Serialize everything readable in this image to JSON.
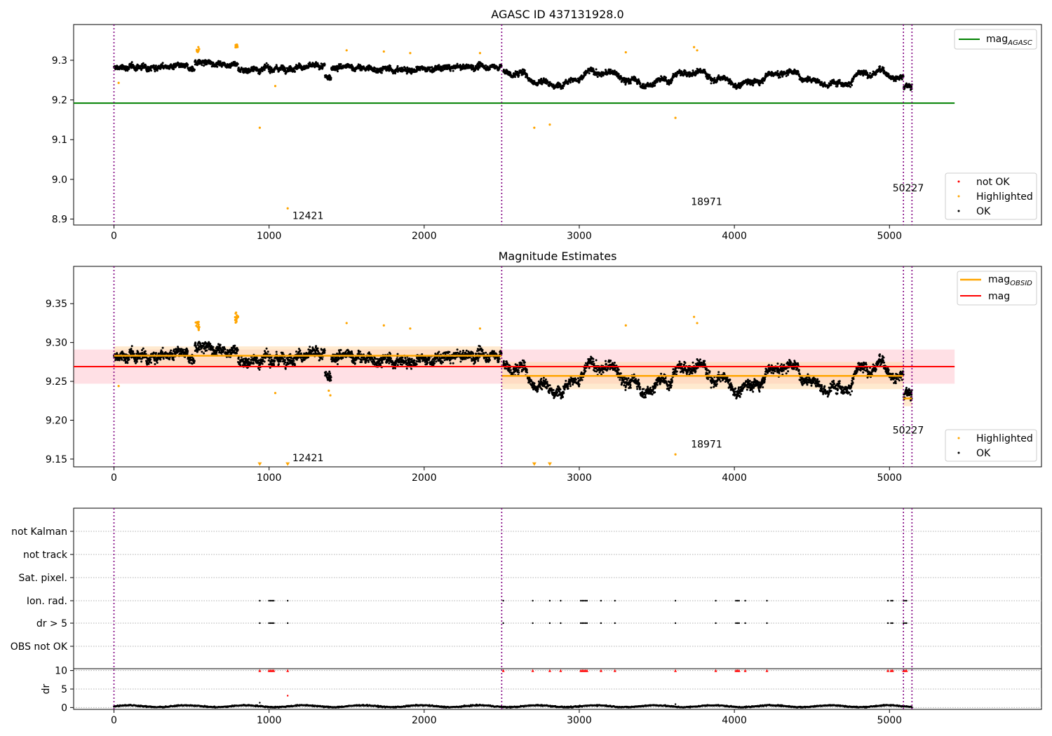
{
  "chart_data": [
    {
      "type": "scatter",
      "title": "AGASC ID 437131928.0",
      "xlim": [
        -260,
        5980
      ],
      "ylim": [
        8.885,
        9.39
      ],
      "xticks": [
        0,
        1000,
        2000,
        3000,
        4000,
        5000
      ],
      "yticks": [
        8.9,
        9.0,
        9.1,
        9.2,
        9.3
      ],
      "ytick_labels": [
        "8.9",
        "9.0",
        "9.1",
        "9.2",
        "9.3"
      ],
      "obs_boundaries": [
        0,
        2500,
        5090,
        5145
      ],
      "annotations": [
        {
          "text": "12421",
          "x": 1150,
          "y": 8.9
        },
        {
          "text": "18971",
          "x": 3720,
          "y": 8.935
        },
        {
          "text": "50227",
          "x": 5020,
          "y": 8.97
        }
      ],
      "hlines": [
        {
          "name": "mag_AGASC",
          "y": 9.192,
          "color": "#008000",
          "x_range": [
            0,
            5420
          ]
        }
      ],
      "highlighted_points": [
        {
          "x": 30,
          "y": 9.243
        },
        {
          "x": 940,
          "y": 9.13
        },
        {
          "x": 1040,
          "y": 9.235
        },
        {
          "x": 1120,
          "y": 8.927
        },
        {
          "x": 1500,
          "y": 9.325
        },
        {
          "x": 1740,
          "y": 9.322
        },
        {
          "x": 1910,
          "y": 9.318
        },
        {
          "x": 2360,
          "y": 9.318
        },
        {
          "x": 2710,
          "y": 9.13
        },
        {
          "x": 2810,
          "y": 9.138
        },
        {
          "x": 3300,
          "y": 9.32
        },
        {
          "x": 3620,
          "y": 9.155
        },
        {
          "x": 3740,
          "y": 9.333
        },
        {
          "x": 3760,
          "y": 9.325
        }
      ],
      "legend": {
        "lines": [
          "mag_AGASC"
        ],
        "points": [
          "not OK",
          "Highlighted",
          "OK"
        ],
        "line_placement": "upper-right",
        "points_placement": "lower-right"
      },
      "series_colors": {
        "ok": "#000000",
        "highlighted": "#ffa500",
        "not_ok": "#ff0000",
        "boundary": "#800080"
      }
    },
    {
      "type": "scatter",
      "title": "Magnitude Estimates",
      "xlim": [
        -260,
        5980
      ],
      "ylim": [
        9.14,
        9.398
      ],
      "xticks": [
        0,
        1000,
        2000,
        3000,
        4000,
        5000
      ],
      "yticks": [
        9.15,
        9.2,
        9.25,
        9.3,
        9.35
      ],
      "ytick_labels": [
        "9.15",
        "9.20",
        "9.25",
        "9.30",
        "9.35"
      ],
      "obs_boundaries": [
        0,
        2500,
        5090,
        5145
      ],
      "annotations": [
        {
          "text": "12421",
          "x": 1150,
          "y": 9.147
        },
        {
          "text": "18971",
          "x": 3720,
          "y": 9.165
        },
        {
          "text": "50227",
          "x": 5020,
          "y": 9.183
        }
      ],
      "mag": {
        "y": 9.269,
        "band": [
          9.247,
          9.291
        ],
        "x_range": [
          -260,
          5420
        ],
        "color": "#ff0000"
      },
      "mag_obsid": [
        {
          "x_range": [
            0,
            2500
          ],
          "y": 9.283,
          "band": [
            9.27,
            9.295
          ]
        },
        {
          "x_range": [
            2500,
            5090
          ],
          "y": 9.257,
          "band": [
            9.24,
            9.275
          ]
        },
        {
          "x_range": [
            5090,
            5145
          ],
          "y": 9.228,
          "band": [
            9.218,
            9.238
          ]
        }
      ],
      "highlighted_points": [
        {
          "x": 30,
          "y": 9.244
        },
        {
          "x": 940,
          "y": 9.143
        },
        {
          "x": 1040,
          "y": 9.235
        },
        {
          "x": 1120,
          "y": 9.143
        },
        {
          "x": 1385,
          "y": 9.238
        },
        {
          "x": 1395,
          "y": 9.232
        },
        {
          "x": 1500,
          "y": 9.325
        },
        {
          "x": 1740,
          "y": 9.322
        },
        {
          "x": 1910,
          "y": 9.318
        },
        {
          "x": 2360,
          "y": 9.318
        },
        {
          "x": 2710,
          "y": 9.143
        },
        {
          "x": 2810,
          "y": 9.143
        },
        {
          "x": 3300,
          "y": 9.322
        },
        {
          "x": 3620,
          "y": 9.156
        },
        {
          "x": 3740,
          "y": 9.333
        },
        {
          "x": 3760,
          "y": 9.325
        }
      ],
      "legend": {
        "lines": [
          "mag_OBSID",
          "mag"
        ],
        "points": [
          "Highlighted",
          "OK"
        ],
        "line_placement": "upper-right",
        "points_placement": "lower-right"
      },
      "series_colors": {
        "ok": "#000000",
        "highlighted": "#ffa500",
        "mag_obsid": "#ffa500",
        "mag": "#ff0000",
        "boundary": "#800080"
      }
    },
    {
      "type": "scatter",
      "title": "",
      "xlim": [
        -260,
        5980
      ],
      "xticks": [
        0,
        1000,
        2000,
        3000,
        4000,
        5000
      ],
      "obs_boundaries": [
        0,
        2500,
        5090,
        5145
      ],
      "flag_rows": [
        "not Kalman",
        "not track",
        "Sat. pixel.",
        "Ion. rad.",
        "dr > 5",
        "OBS not OK"
      ],
      "flag_points_x": [
        940,
        1000,
        1010,
        1020,
        1030,
        1120,
        2510,
        2700,
        2810,
        2880,
        3010,
        3020,
        3030,
        3040,
        3050,
        3140,
        3230,
        3620,
        3880,
        4010,
        4020,
        4030,
        4070,
        4210,
        4990,
        5010,
        5020,
        5090,
        5100,
        5110
      ],
      "dr_ylim": [
        -0.5,
        10.5
      ],
      "dr_yticks": [
        0,
        5,
        10
      ],
      "ylabel": "dr",
      "dr_outliers": [
        {
          "x": 1120,
          "y": 3.2
        },
        {
          "x": 940,
          "y": 1.3
        },
        {
          "x": 3620,
          "y": 0.9
        }
      ],
      "dr_capped_value": 10,
      "series_colors": {
        "flag": "#000000",
        "dr": "#000000",
        "dr_capped": "#ff0000",
        "boundary": "#800080"
      }
    }
  ]
}
